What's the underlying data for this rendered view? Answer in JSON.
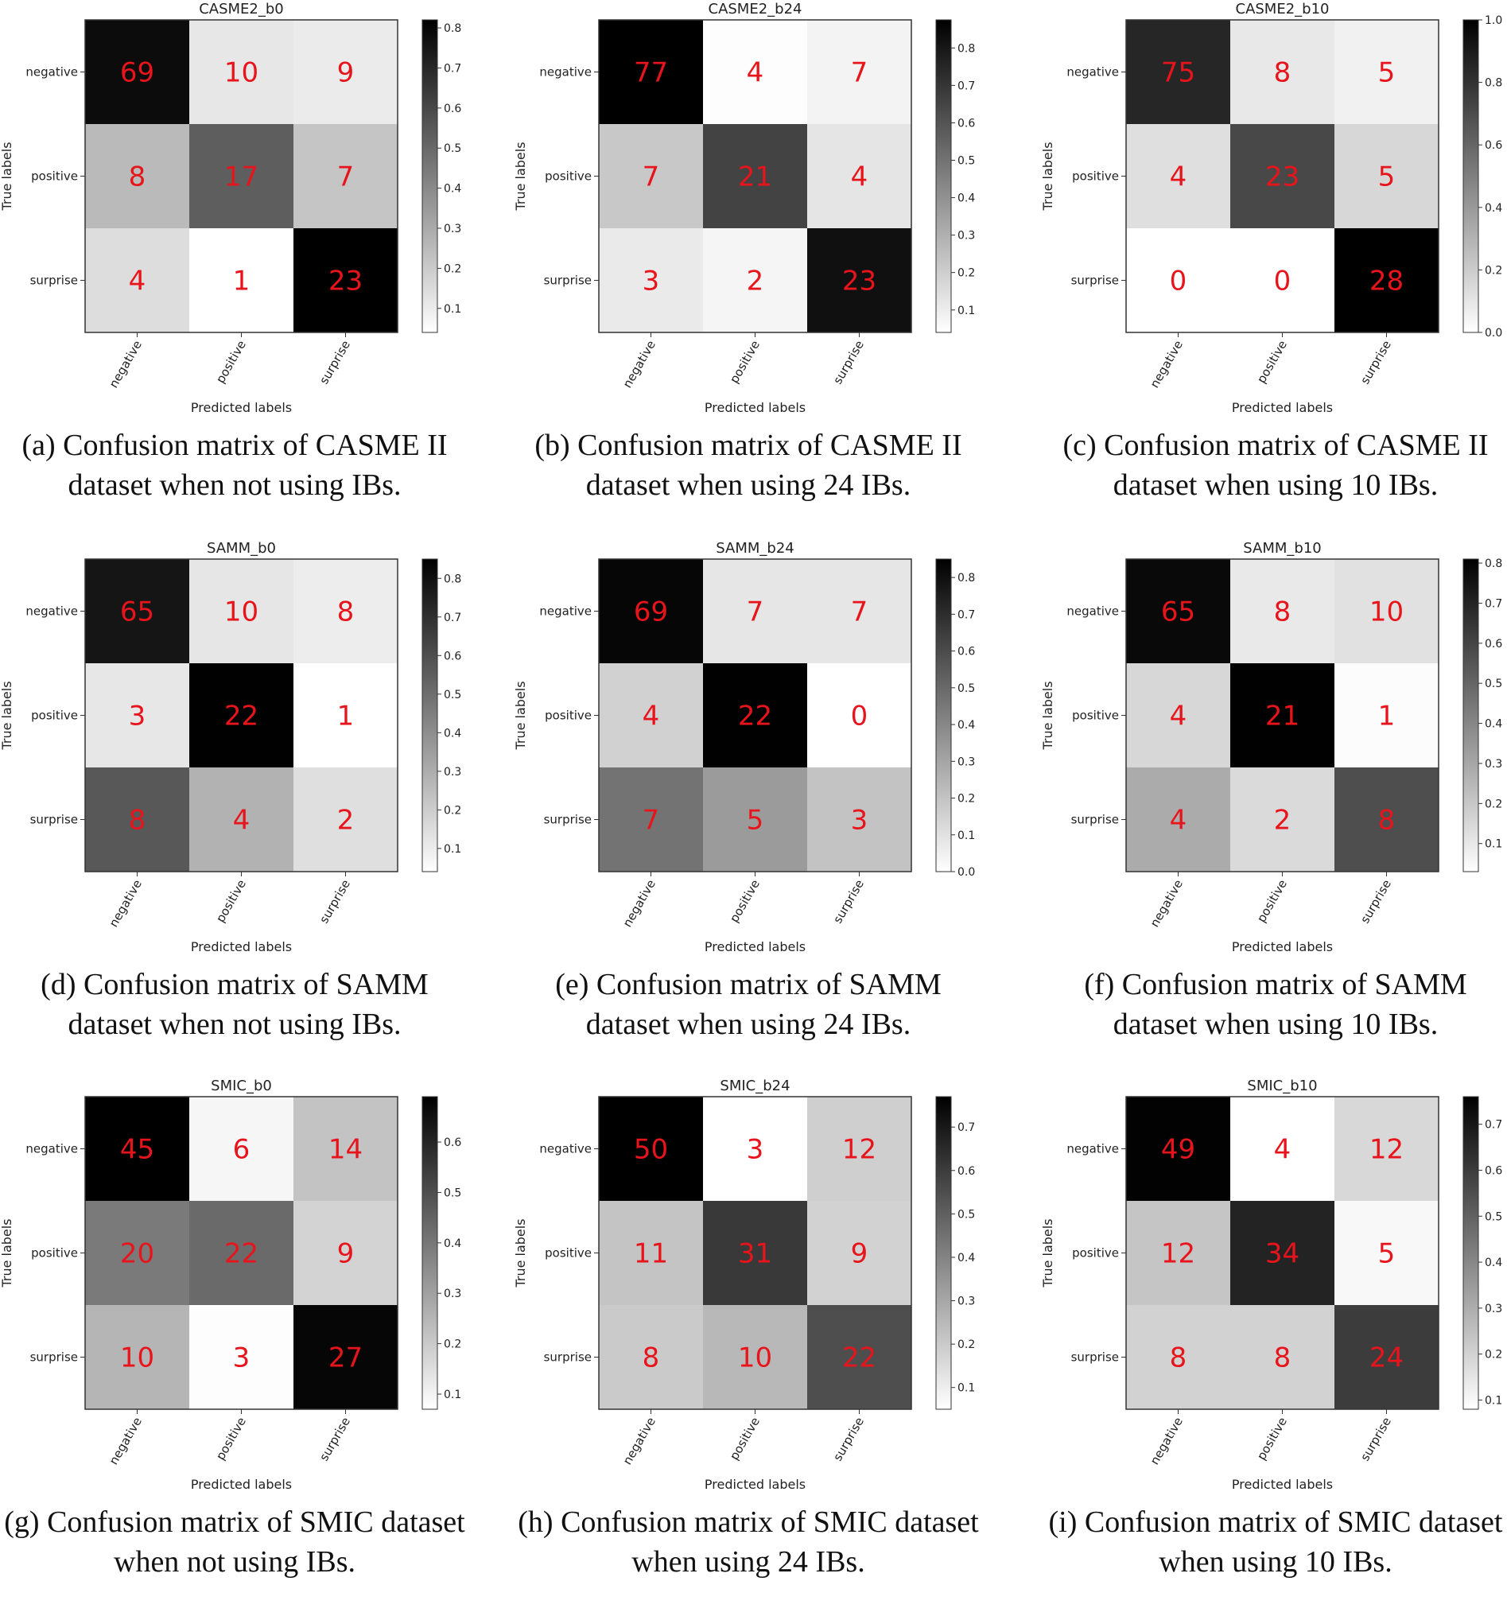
{
  "chart_data": [
    {
      "type": "heatmap",
      "title": "CASME2_b0",
      "caption": "(a) Confusion matrix of CASME II dataset when not using IBs.",
      "xlabel": "Predicted labels",
      "ylabel": "True labels",
      "labels": [
        "negative",
        "positive",
        "surprise"
      ],
      "matrix": [
        [
          69,
          10,
          9
        ],
        [
          8,
          17,
          7
        ],
        [
          4,
          1,
          23
        ]
      ],
      "colorbar": {
        "range": [
          0.04,
          0.82
        ],
        "ticks": [
          0.1,
          0.2,
          0.3,
          0.4,
          0.5,
          0.6,
          0.7,
          0.8
        ]
      }
    },
    {
      "type": "heatmap",
      "title": "CASME2_b24",
      "caption": "(b) Confusion matrix of CASME II dataset when using 24 IBs.",
      "xlabel": "Predicted labels",
      "ylabel": "True labels",
      "labels": [
        "negative",
        "positive",
        "surprise"
      ],
      "matrix": [
        [
          77,
          4,
          7
        ],
        [
          7,
          21,
          4
        ],
        [
          3,
          2,
          23
        ]
      ],
      "colorbar": {
        "range": [
          0.04,
          0.875
        ],
        "ticks": [
          0.1,
          0.2,
          0.3,
          0.4,
          0.5,
          0.6,
          0.7,
          0.8
        ]
      }
    },
    {
      "type": "heatmap",
      "title": "CASME2_b10",
      "caption": "(c) Confusion matrix of CASME II dataset when using 10 IBs.",
      "xlabel": "Predicted labels",
      "ylabel": "True labels",
      "labels": [
        "negative",
        "positive",
        "surprise"
      ],
      "matrix": [
        [
          75,
          8,
          5
        ],
        [
          4,
          23,
          5
        ],
        [
          0,
          0,
          28
        ]
      ],
      "colorbar": {
        "range": [
          0.0,
          1.0
        ],
        "ticks": [
          0.0,
          0.2,
          0.4,
          0.6,
          0.8,
          1.0
        ]
      }
    },
    {
      "type": "heatmap",
      "title": "SAMM_b0",
      "caption": "(d) Confusion matrix of SAMM dataset when not using IBs.",
      "xlabel": "Predicted labels",
      "ylabel": "True labels",
      "labels": [
        "negative",
        "positive",
        "surprise"
      ],
      "matrix": [
        [
          65,
          10,
          8
        ],
        [
          3,
          22,
          1
        ],
        [
          8,
          4,
          2
        ]
      ],
      "colorbar": {
        "range": [
          0.04,
          0.85
        ],
        "ticks": [
          0.1,
          0.2,
          0.3,
          0.4,
          0.5,
          0.6,
          0.7,
          0.8
        ]
      }
    },
    {
      "type": "heatmap",
      "title": "SAMM_b24",
      "caption": "(e) Confusion matrix of SAMM dataset when using 24 IBs.",
      "xlabel": "Predicted labels",
      "ylabel": "True labels",
      "labels": [
        "negative",
        "positive",
        "surprise"
      ],
      "matrix": [
        [
          69,
          7,
          7
        ],
        [
          4,
          22,
          0
        ],
        [
          7,
          5,
          3
        ]
      ],
      "colorbar": {
        "range": [
          0.0,
          0.85
        ],
        "ticks": [
          0.0,
          0.1,
          0.2,
          0.3,
          0.4,
          0.5,
          0.6,
          0.7,
          0.8
        ]
      }
    },
    {
      "type": "heatmap",
      "title": "SAMM_b10",
      "caption": "(f) Confusion matrix of SAMM dataset when using 10 IBs.",
      "xlabel": "Predicted labels",
      "ylabel": "True labels",
      "labels": [
        "negative",
        "positive",
        "surprise"
      ],
      "matrix": [
        [
          65,
          8,
          10
        ],
        [
          4,
          21,
          1
        ],
        [
          4,
          2,
          8
        ]
      ],
      "colorbar": {
        "range": [
          0.03,
          0.81
        ],
        "ticks": [
          0.1,
          0.2,
          0.3,
          0.4,
          0.5,
          0.6,
          0.7,
          0.8
        ]
      }
    },
    {
      "type": "heatmap",
      "title": "SMIC_b0",
      "caption": "(g) Confusion matrix of SMIC dataset when not using IBs.",
      "xlabel": "Predicted labels",
      "ylabel": "True labels",
      "labels": [
        "negative",
        "positive",
        "surprise"
      ],
      "matrix": [
        [
          45,
          6,
          14
        ],
        [
          20,
          22,
          9
        ],
        [
          10,
          3,
          27
        ]
      ],
      "colorbar": {
        "range": [
          0.07,
          0.69
        ],
        "ticks": [
          0.1,
          0.2,
          0.3,
          0.4,
          0.5,
          0.6
        ]
      }
    },
    {
      "type": "heatmap",
      "title": "SMIC_b24",
      "caption": "(h) Confusion matrix of SMIC dataset when using 24 IBs.",
      "xlabel": "Predicted labels",
      "ylabel": "True labels",
      "labels": [
        "negative",
        "positive",
        "surprise"
      ],
      "matrix": [
        [
          50,
          3,
          12
        ],
        [
          11,
          31,
          9
        ],
        [
          8,
          10,
          22
        ]
      ],
      "colorbar": {
        "range": [
          0.05,
          0.77
        ],
        "ticks": [
          0.1,
          0.2,
          0.3,
          0.4,
          0.5,
          0.6,
          0.7
        ]
      }
    },
    {
      "type": "heatmap",
      "title": "SMIC_b10",
      "caption": "(i) Confusion matrix of SMIC dataset when using 10 IBs.",
      "xlabel": "Predicted labels",
      "ylabel": "True labels",
      "labels": [
        "negative",
        "positive",
        "surprise"
      ],
      "matrix": [
        [
          49,
          4,
          12
        ],
        [
          12,
          34,
          5
        ],
        [
          8,
          8,
          24
        ]
      ],
      "colorbar": {
        "range": [
          0.08,
          0.76
        ],
        "ticks": [
          0.1,
          0.2,
          0.3,
          0.4,
          0.5,
          0.6,
          0.7
        ]
      }
    }
  ],
  "colors": {
    "value_text": "#e8141c",
    "axis": "#222222"
  }
}
